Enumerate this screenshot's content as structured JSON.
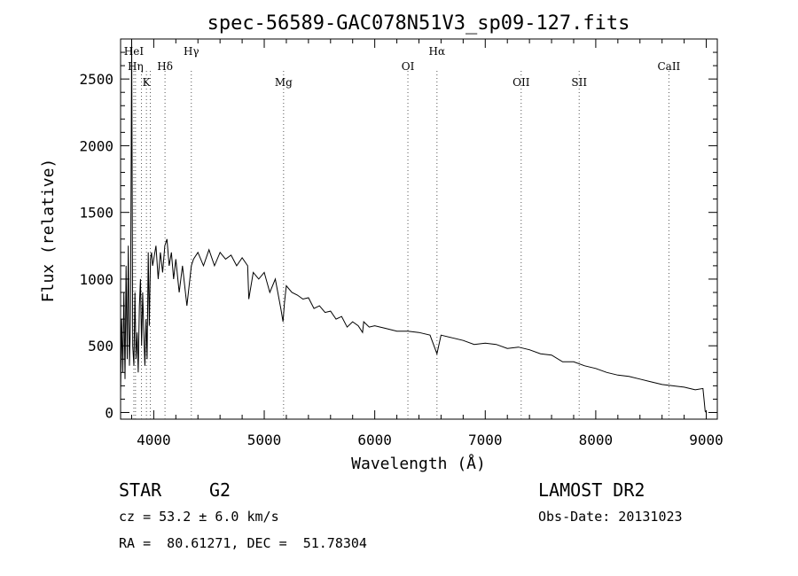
{
  "chart_data": {
    "type": "line",
    "title": "spec-56589-GAC078N51V3_sp09-127.fits",
    "xlabel": "Wavelength (Å)",
    "ylabel": "Flux (relative)",
    "xlim": [
      3700,
      9100
    ],
    "ylim": [
      -50,
      2800
    ],
    "xticks": [
      4000,
      5000,
      6000,
      7000,
      8000,
      9000
    ],
    "yticks": [
      0,
      500,
      1000,
      1500,
      2000,
      2500
    ],
    "grid": false,
    "series": [
      {
        "color": "#000000",
        "x": [
          3700,
          3710,
          3720,
          3730,
          3740,
          3750,
          3760,
          3770,
          3780,
          3790,
          3800,
          3810,
          3820,
          3830,
          3840,
          3850,
          3860,
          3870,
          3880,
          3890,
          3900,
          3910,
          3920,
          3930,
          3940,
          3950,
          3960,
          3970,
          3980,
          3990,
          4000,
          4020,
          4040,
          4060,
          4080,
          4100,
          4120,
          4140,
          4160,
          4180,
          4200,
          4230,
          4260,
          4300,
          4340,
          4360,
          4400,
          4450,
          4500,
          4550,
          4600,
          4650,
          4700,
          4750,
          4800,
          4850,
          4860,
          4900,
          4950,
          5000,
          5050,
          5100,
          5150,
          5170,
          5183,
          5200,
          5250,
          5300,
          5350,
          5400,
          5450,
          5500,
          5550,
          5600,
          5650,
          5700,
          5750,
          5800,
          5850,
          5890,
          5900,
          5950,
          6000,
          6100,
          6200,
          6300,
          6400,
          6500,
          6563,
          6600,
          6700,
          6800,
          6900,
          7000,
          7100,
          7200,
          7300,
          7400,
          7500,
          7600,
          7700,
          7800,
          7900,
          8000,
          8100,
          8200,
          8300,
          8400,
          8500,
          8600,
          8700,
          8800,
          8900,
          8970,
          8980,
          8990,
          9000
        ],
        "y": [
          150,
          700,
          300,
          900,
          250,
          1100,
          400,
          1250,
          350,
          700,
          2950,
          500,
          350,
          900,
          400,
          600,
          300,
          800,
          1000,
          500,
          900,
          600,
          350,
          700,
          400,
          1200,
          650,
          1150,
          1200,
          1100,
          1150,
          1250,
          1000,
          1200,
          1050,
          1250,
          1300,
          1100,
          1200,
          1000,
          1150,
          900,
          1100,
          800,
          1100,
          1150,
          1200,
          1100,
          1220,
          1100,
          1200,
          1150,
          1180,
          1100,
          1160,
          1100,
          850,
          1050,
          1000,
          1050,
          900,
          1000,
          780,
          680,
          820,
          950,
          900,
          880,
          850,
          860,
          780,
          800,
          750,
          760,
          700,
          720,
          640,
          680,
          650,
          600,
          680,
          640,
          650,
          630,
          610,
          610,
          600,
          580,
          440,
          580,
          560,
          540,
          510,
          520,
          510,
          480,
          490,
          470,
          440,
          430,
          380,
          380,
          350,
          330,
          300,
          280,
          270,
          250,
          230,
          210,
          200,
          190,
          170,
          180,
          100,
          10,
          0
        ]
      }
    ],
    "annotations": [
      {
        "label": "HeI",
        "x": 3820,
        "row": 1
      },
      {
        "label": "Hη",
        "x": 3835,
        "row": 2
      },
      {
        "label": "K",
        "x": 3934,
        "row": 3
      },
      {
        "label": "Hδ",
        "x": 4102,
        "row": 2
      },
      {
        "label": "Hγ",
        "x": 4340,
        "row": 1
      },
      {
        "label": "Mg",
        "x": 5175,
        "row": 3
      },
      {
        "label": "OI",
        "x": 6300,
        "row": 2
      },
      {
        "label": "Hα",
        "x": 6563,
        "row": 1
      },
      {
        "label": "OII",
        "x": 7325,
        "row": 3
      },
      {
        "label": "SII",
        "x": 7850,
        "row": 3
      },
      {
        "label": "CaII",
        "x": 8662,
        "row": 2
      }
    ],
    "annotation_marker_x": [
      3820,
      3835,
      3889,
      3934,
      3969,
      4102,
      4340,
      5175,
      6300,
      6563,
      7325,
      7850,
      8662
    ]
  },
  "info": {
    "object_class": "STAR",
    "subclass": "G2",
    "survey": "LAMOST DR2",
    "redshift": "cz = 53.2 ± 6.0 km/s",
    "obs_date": "Obs-Date: 20131023",
    "coords": "RA =  80.61271, DEC =  51.78304"
  }
}
